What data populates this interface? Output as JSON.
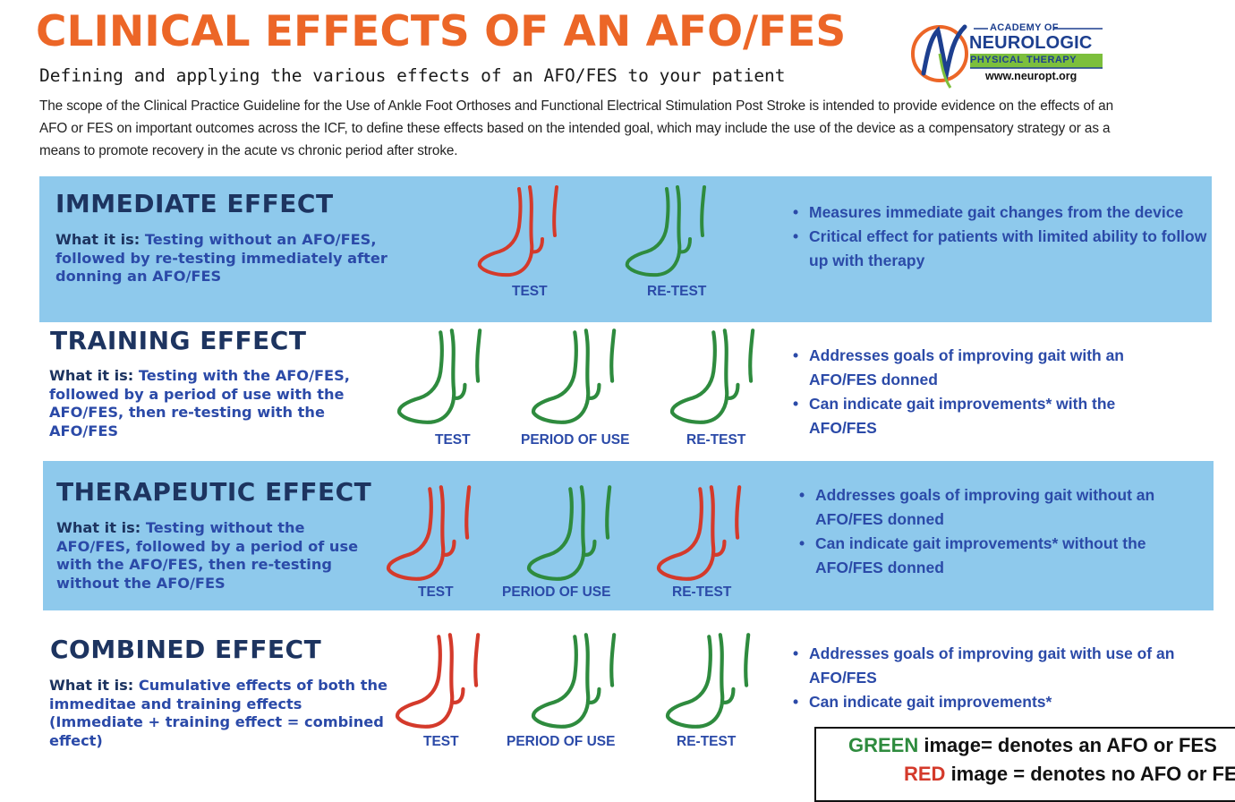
{
  "header": {
    "title": "CLINICAL EFFECTS OF AN AFO/FES",
    "subtitle": "Defining and applying the various effects of an AFO/FES to your patient",
    "intro": "The scope of the Clinical Practice Guideline for the Use of Ankle Foot Orthoses and Functional Electrical Stimulation Post Stroke is intended to provide evidence on the effects of an AFO or FES on important outcomes across the ICF, to define these effects based on the intended goal, which may include the use of the device as a compensatory strategy or as a means to promote recovery in the acute vs chronic period after stroke."
  },
  "logo": {
    "top": "ACADEMY OF",
    "main": "NEUROLOGIC",
    "sub": "PHYSICAL THERAPY",
    "url": "www.neuropt.org"
  },
  "colors": {
    "orange": "#ec6627",
    "band": "#8ec9ec",
    "navy": "#1d3460",
    "blue": "#2b4aa8",
    "green": "#2e8b3e",
    "red": "#d43a2b"
  },
  "sections": [
    {
      "title": "IMMEDIATE EFFECT",
      "what_label": "What it is:",
      "what_text": "Testing without an AFO/FES, followed by re-testing immediately after donning an AFO/FES",
      "feet": [
        {
          "label": "TEST",
          "color": "red"
        },
        {
          "label": "RE-TEST",
          "color": "green"
        }
      ],
      "bullets": [
        "Measures immediate gait changes from the device",
        "Critical effect for patients with limited ability to follow up with therapy"
      ]
    },
    {
      "title": "TRAINING EFFECT",
      "what_label": "What it is:",
      "what_text": "Testing with the AFO/FES, followed by a period of use with the AFO/FES, then re-testing with the AFO/FES",
      "feet": [
        {
          "label": "TEST",
          "color": "green"
        },
        {
          "label": "PERIOD OF USE",
          "color": "green"
        },
        {
          "label": "RE-TEST",
          "color": "green"
        }
      ],
      "bullets": [
        "Addresses goals of improving gait with an AFO/FES donned",
        "Can indicate gait improvements* with the AFO/FES"
      ]
    },
    {
      "title": "THERAPEUTIC EFFECT",
      "what_label": "What it is:",
      "what_text": "Testing without the AFO/FES, followed by a period of use with the AFO/FES, then re-testing without the AFO/FES",
      "feet": [
        {
          "label": "TEST",
          "color": "red"
        },
        {
          "label": "PERIOD OF USE",
          "color": "green"
        },
        {
          "label": "RE-TEST",
          "color": "red"
        }
      ],
      "bullets": [
        "Addresses goals of improving gait without an AFO/FES donned",
        "Can indicate gait improvements* without the AFO/FES donned"
      ]
    },
    {
      "title": "COMBINED EFFECT",
      "what_label": "What it is:",
      "what_text": "Cumulative effects of both the immeditae and training effects (Immediate  + training effect = combined effect)",
      "feet": [
        {
          "label": "TEST",
          "color": "red"
        },
        {
          "label": "PERIOD OF USE",
          "color": "green"
        },
        {
          "label": "RE-TEST",
          "color": "green"
        }
      ],
      "bullets": [
        "Addresses goals of improving gait with use of an AFO/FES",
        "Can indicate gait improvements*"
      ]
    }
  ],
  "legend": {
    "green_word": "GREEN",
    "green_text": " image= denotes an AFO or FES",
    "red_word": "RED",
    "red_text": " image = denotes no AFO or FES"
  }
}
